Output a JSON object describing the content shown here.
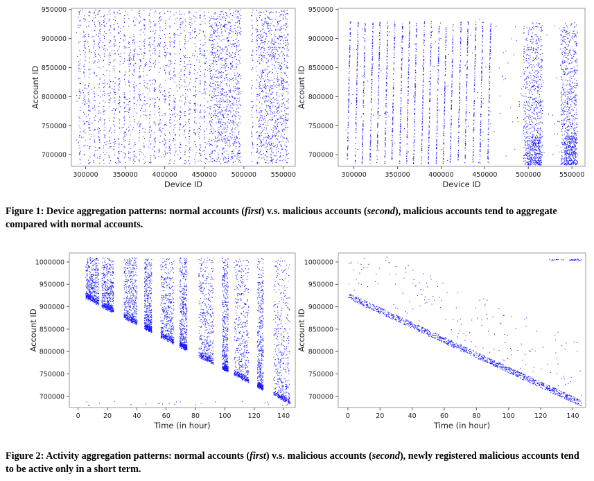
{
  "figure1": {
    "caption": {
      "label": "Figure 1:",
      "text_a": "Device aggregation patterns: normal accounts (",
      "em1": "first",
      "text_b": ") v.s. malicious accounts (",
      "em2": "second",
      "text_c": "), malicious accounts tend to aggregate compared with normal accounts."
    }
  },
  "figure2": {
    "caption": {
      "label": "Figure 2:",
      "text_a": "Activity aggregation patterns: normal accounts (",
      "em1": "first",
      "text_b": ") v.s. malicious accounts (",
      "em2": "second",
      "text_c": "), newly registered malicious accounts tend to be active only in a short term."
    }
  },
  "chart_data": [
    {
      "id": "fig1-normal",
      "type": "scatter",
      "title": "",
      "xlabel": "Device ID",
      "ylabel": "Account ID",
      "xlim": [
        282000,
        565000
      ],
      "ylim": [
        680000,
        952000
      ],
      "xticks": [
        300000,
        350000,
        400000,
        450000,
        500000,
        550000
      ],
      "yticks": [
        700000,
        750000,
        800000,
        850000,
        900000,
        950000
      ],
      "grid": false,
      "color": "#1a1aff",
      "pattern": "Scattered vertical columns of points spanning account IDs ~685000-950000 across device IDs ~290000-555000; dense clusters near device 460000-495000 and 520000-555000; gaps near 500000-510000.",
      "columns": [
        292000,
        298000,
        304000,
        311000,
        317000,
        323000,
        330000,
        336000,
        342000,
        349000,
        355000,
        361000,
        368000,
        374000,
        381000,
        387000,
        393000,
        400000,
        406000,
        412000,
        419000,
        425000,
        431000,
        438000,
        444000,
        450000,
        457000,
        510000,
        516000
      ],
      "dense_bands": [
        [
          458000,
          496000
        ],
        [
          518000,
          556000
        ]
      ],
      "y_range": [
        685000,
        950000
      ]
    },
    {
      "id": "fig1-malicious",
      "type": "scatter",
      "title": "",
      "xlabel": "Device ID",
      "ylabel": "Account ID",
      "xlim": [
        282000,
        565000
      ],
      "ylim": [
        680000,
        952000
      ],
      "xticks": [
        300000,
        350000,
        400000,
        450000,
        500000,
        550000
      ],
      "yticks": [
        700000,
        750000,
        800000,
        850000,
        900000,
        950000
      ],
      "grid": false,
      "color": "#1a1aff",
      "pattern": "Distinct slanted line-like columns (each device block spans accounts from ~685000 to ~930000), plus dense clusters near device 495000-515000 and 538000-555000.",
      "columns": [
        292000,
        301000,
        309000,
        318000,
        326000,
        335000,
        343000,
        352000,
        360000,
        368000,
        377000,
        385000,
        394000,
        402000,
        410000,
        419000,
        427000,
        436000,
        444000,
        453000
      ],
      "dense_bands": [
        [
          494000,
          516000
        ],
        [
          537000,
          556000
        ]
      ],
      "y_range": [
        685000,
        930000
      ]
    },
    {
      "id": "fig2-normal",
      "type": "scatter",
      "title": "",
      "xlabel": "Time (in hour)",
      "ylabel": "Account ID",
      "xlim": [
        -6,
        148
      ],
      "ylim": [
        675000,
        1020000
      ],
      "xticks": [
        0,
        20,
        40,
        60,
        80,
        100,
        120,
        140
      ],
      "yticks": [
        700000,
        750000,
        800000,
        850000,
        900000,
        950000,
        1000000
      ],
      "grid": false,
      "color": "#1a1aff",
      "pattern": "Points lie on and above a descending diagonal from (0, ~930000) to (145, ~685000), with vertical activity bands every ~12 hours extending up to ~1010000.",
      "diagonal": [
        [
          0,
          930000
        ],
        [
          145,
          685000
        ]
      ],
      "bands": [
        [
          5,
          14
        ],
        [
          16,
          24
        ],
        [
          31,
          40
        ],
        [
          45,
          50
        ],
        [
          56,
          65
        ],
        [
          69,
          74
        ],
        [
          82,
          92
        ],
        [
          98,
          102
        ],
        [
          106,
          116
        ],
        [
          122,
          126
        ],
        [
          133,
          144
        ]
      ],
      "y_top": 1010000
    },
    {
      "id": "fig2-malicious",
      "type": "scatter",
      "title": "",
      "xlabel": "Time (in hour)",
      "ylabel": "Account ID",
      "xlim": [
        -6,
        148
      ],
      "ylim": [
        675000,
        1020000
      ],
      "xticks": [
        0,
        20,
        40,
        60,
        80,
        100,
        120,
        140
      ],
      "yticks": [
        700000,
        750000,
        800000,
        850000,
        900000,
        950000,
        1000000
      ],
      "grid": false,
      "color": "#1a1aff",
      "pattern": "Points concentrated tightly along the descending diagonal from (0, ~925000) to (145, ~685000), with sparse scattered points above.",
      "diagonal": [
        [
          0,
          925000
        ],
        [
          145,
          685000
        ]
      ],
      "sparse_above": true
    }
  ]
}
